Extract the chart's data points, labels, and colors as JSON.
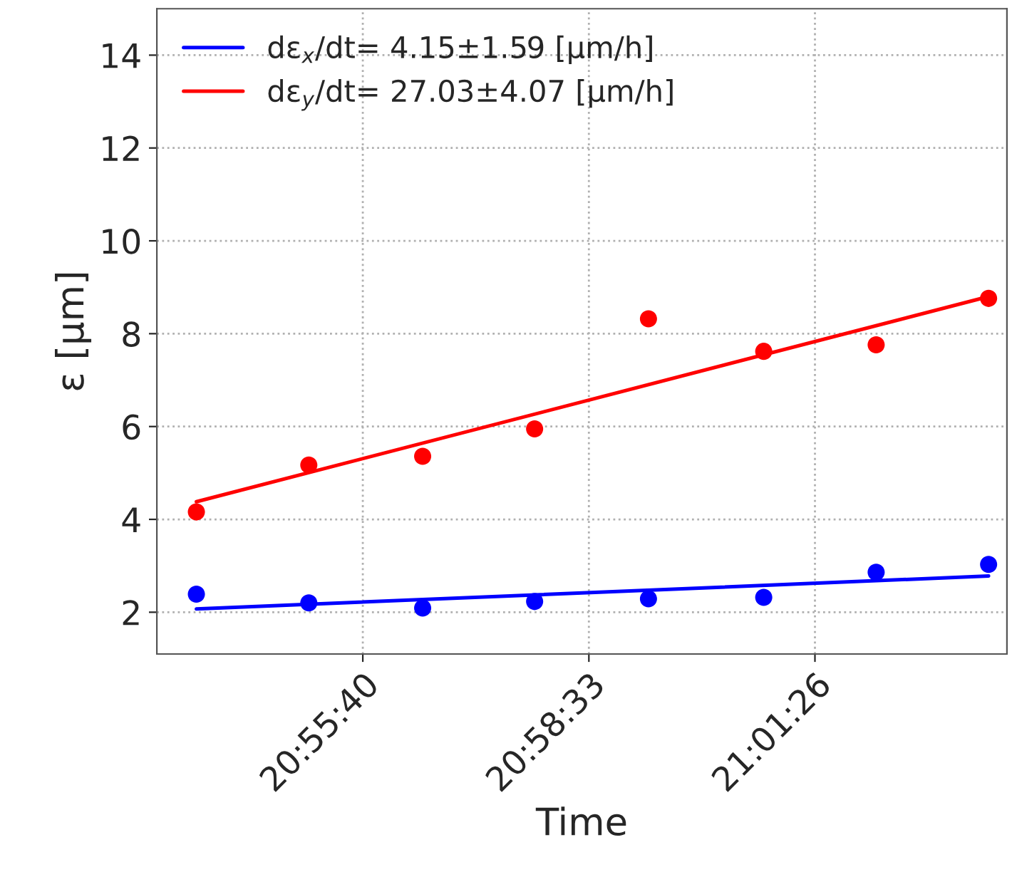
{
  "chart_data": {
    "type": "scatter",
    "xlabel": "Time",
    "ylabel": "ε [μm]",
    "xlim": [
      20.884,
      21.0647
    ],
    "xticks": [
      {
        "value": 20.927778,
        "label": "20:55:40"
      },
      {
        "value": 20.975833,
        "label": "20:58:33"
      },
      {
        "value": 21.023889,
        "label": "21:01:26"
      }
    ],
    "ylim": [
      1.1,
      15
    ],
    "yticks": [
      2,
      4,
      6,
      8,
      10,
      12,
      14
    ],
    "grid": true,
    "legend": "top left",
    "series": [
      {
        "type": "line",
        "name": "dε$_{x}$/dt= 4.15±1.59 [μm/h]",
        "color": "#0000ff",
        "x": [
          20.8924,
          21.0608
        ],
        "values": [
          2.07,
          2.78
        ],
        "marker": "none",
        "line_style": "solid"
      },
      {
        "type": "line",
        "name": "dε$_{y}$/dt= 27.03±4.07 [μm/h]",
        "color": "#ff0000",
        "x": [
          20.8924,
          21.0608
        ],
        "values": [
          4.38,
          8.8
        ],
        "marker": "none",
        "line_style": "solid"
      },
      {
        "color": "#0000ff",
        "marker": "circle",
        "x": [
          20.8924,
          20.9163,
          20.9405,
          20.9643,
          20.9885,
          21.013,
          21.0369,
          21.0608
        ],
        "values": [
          2.39,
          2.2,
          2.09,
          2.23,
          2.29,
          2.32,
          2.86,
          3.03
        ]
      },
      {
        "color": "#ff0000",
        "marker": "circle",
        "x": [
          20.8924,
          20.9163,
          20.9405,
          20.9643,
          20.9885,
          21.013,
          21.0369,
          21.0608
        ],
        "values": [
          4.16,
          5.17,
          5.36,
          5.95,
          8.32,
          7.62,
          7.76,
          8.76
        ]
      }
    ]
  }
}
